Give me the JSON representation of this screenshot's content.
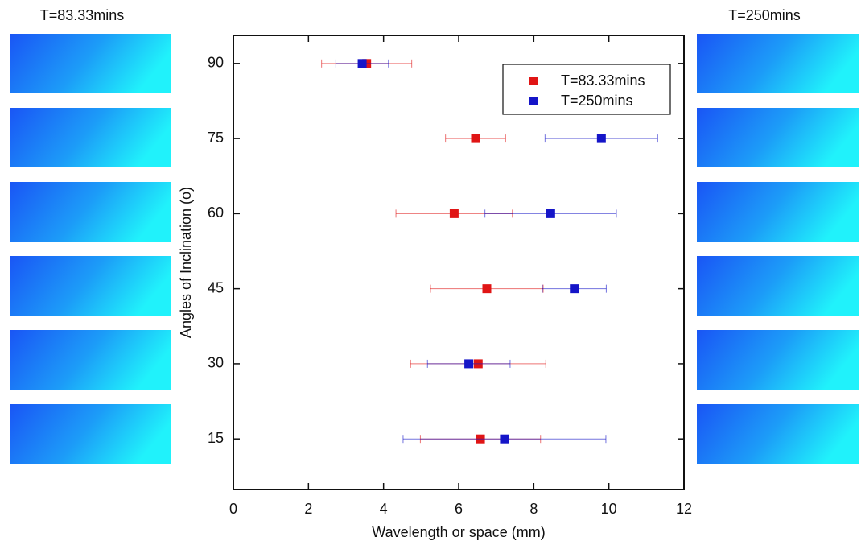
{
  "chart_data": {
    "type": "scatter",
    "xlabel": "Wavelength or space (mm)",
    "ylabel": "Angles of Inclination (o)",
    "xlim": [
      0,
      12
    ],
    "xticks": [
      0,
      2,
      4,
      6,
      8,
      10,
      12
    ],
    "ylim": [
      4.9,
      95.6
    ],
    "yticks": [
      15,
      30,
      45,
      60,
      75,
      90
    ],
    "legend": "upper right",
    "series": [
      {
        "name": "T=83.33mins",
        "color": "#e01515",
        "y": [
          90,
          75,
          60,
          45,
          30,
          15
        ],
        "x": [
          3.55,
          6.45,
          5.88,
          6.75,
          6.52,
          6.58
        ],
        "xerr": [
          1.2,
          0.8,
          1.55,
          1.5,
          1.8,
          1.6
        ]
      },
      {
        "name": "T=250mins",
        "color": "#1515c8",
        "y": [
          90,
          75,
          60,
          45,
          30,
          15
        ],
        "x": [
          3.43,
          9.8,
          8.45,
          9.08,
          6.27,
          7.22
        ],
        "xerr": [
          0.7,
          1.5,
          1.75,
          0.85,
          1.1,
          2.7
        ]
      }
    ]
  }
}
